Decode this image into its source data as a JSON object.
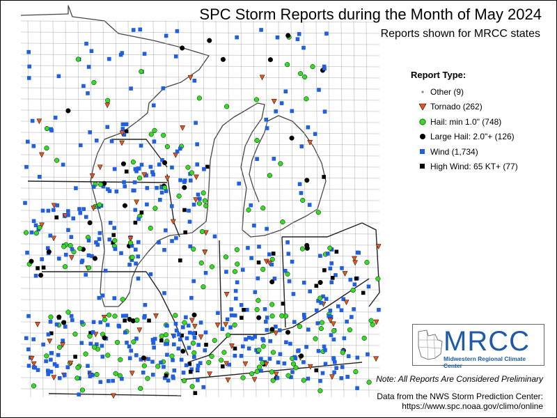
{
  "title": "SPC Storm Reports during the Month of May 2024",
  "subtitle": "Reports shown for MRCC states",
  "legend": {
    "title": "Report Type:",
    "items": [
      {
        "label": "Other (9)",
        "marker": "dot",
        "color": "#888888"
      },
      {
        "label": "Tornado (262)",
        "marker": "triangle",
        "color": "#e8561c"
      },
      {
        "label": "Hail: min 1.0\" (748)",
        "marker": "circle",
        "color": "#33dd22"
      },
      {
        "label": "Large Hail: 2.0\"+ (126)",
        "marker": "circle",
        "color": "#000000"
      },
      {
        "label": "Wind (1,734)",
        "marker": "square",
        "color": "#1f5fe0"
      },
      {
        "label": "High Wind: 65 KT+ (77)",
        "marker": "square",
        "color": "#000000"
      }
    ]
  },
  "logo": {
    "name": "MRCC",
    "subtitle": "Midwestern Regional Climate Center"
  },
  "note": "Note: All Reports Are Considered Preliminary",
  "credit_line1": "Data from the NWS Storm Prediction Center:",
  "credit_line2": "https://www.spc.noaa.gov/climo/online",
  "colors": {
    "tornado": "#e8561c",
    "hail": "#33dd22",
    "wind": "#1f5fe0",
    "large_hail": "#000000",
    "high_wind": "#000000",
    "other": "#888888",
    "borders": "#444444"
  },
  "icons": [
    "mrcc-logo-icon"
  ]
}
